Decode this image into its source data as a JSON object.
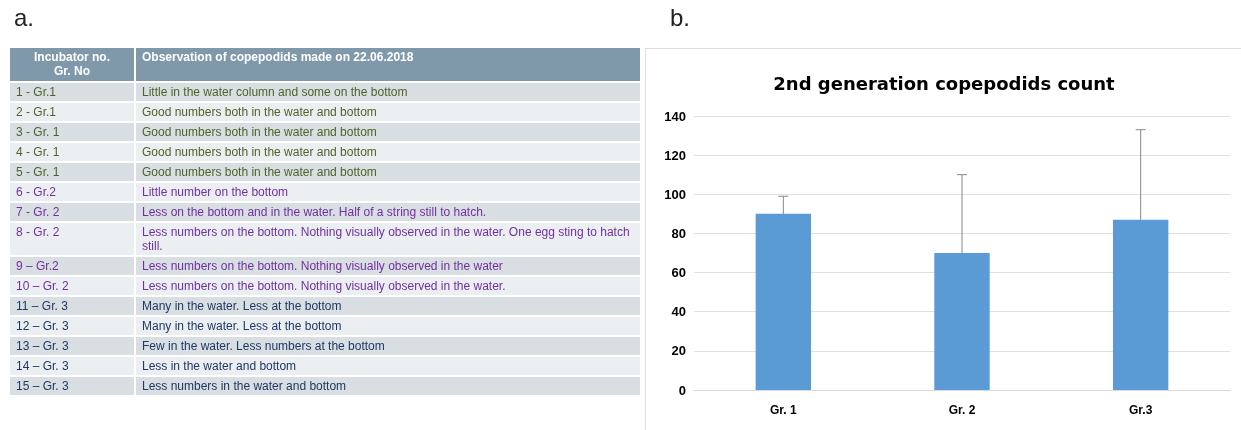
{
  "chart_data": [
    {
      "type": "other",
      "title": "a.",
      "annotations": [
        "Incubator no.\nGr. No",
        "Observation of copepodids made on 22.06.2018",
        "1 - Gr.1",
        "Little in the water column and some on the bottom",
        "2 - Gr.1",
        "Good numbers both in the water and bottom",
        "3 - Gr.  1",
        "Good numbers both in the water and bottom",
        "4 - Gr.  1",
        "Good numbers both in the water and bottom",
        "5 - Gr.  1",
        "Good numbers both in the water and bottom",
        "6 - Gr.2",
        "Little number on the bottom",
        "7 - Gr.  2",
        "Less on the bottom and in the water. Half of a string still to hatch.",
        "8 - Gr.  2",
        "Less numbers on the bottom. Nothing visually observed in the water.  One egg sting to hatch still.",
        "9 – Gr.2",
        "Less numbers on the bottom. Nothing visually observed in the water",
        "10 – Gr. 2",
        "Less numbers on the bottom. Nothing visually observed in the water.",
        "11 – Gr. 3",
        "Many  in the water. Less at the bottom",
        "12 – Gr. 3",
        "Many  in the water. Less at the bottom",
        "13 – Gr. 3",
        "Few in the water. Less numbers at the bottom",
        "14 – Gr. 3",
        "Less in the water and bottom",
        "15 – Gr. 3",
        "Less numbers in the water and bottom"
      ]
    },
    {
      "type": "bar",
      "title": "2nd generation copepodids count",
      "annotations": [
        "b."
      ],
      "categories": [
        "Gr. 1",
        "Gr. 2",
        "Gr.3"
      ],
      "values": [
        90,
        70,
        87
      ],
      "color": "#5b9bd5",
      "errors": [
        [
          90,
          99
        ],
        [
          70,
          110
        ],
        [
          87,
          133
        ]
      ],
      "ylim": [
        0,
        140
      ],
      "yticks": [
        0,
        20,
        40,
        60,
        80,
        100,
        120,
        140
      ],
      "grid": "y"
    }
  ]
}
